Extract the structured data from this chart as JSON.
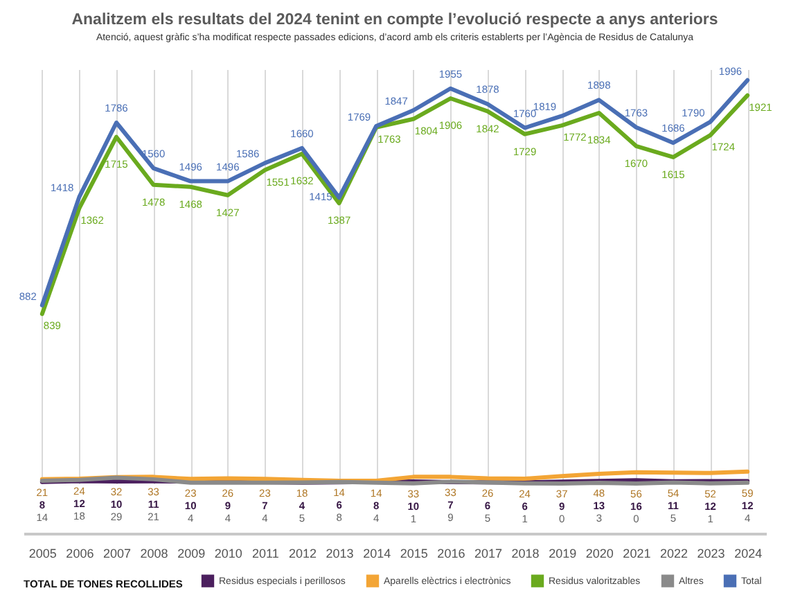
{
  "chart_data": {
    "type": "line",
    "title": "Analitzem els resultats del 2024 tenint en compte l’evolució respecte a anys anteriors",
    "subtitle": "Atenció, aquest gràfic s’ha modificat respecte passades edicions, d’acord amb els criteris establerts per l’Agència de Residus de Catalunya",
    "legend_title": "TOTAL DE TONES RECOLLIDES",
    "categories": [
      "2005",
      "2006",
      "2007",
      "2008",
      "2009",
      "2010",
      "2011",
      "2012",
      "2013",
      "2014",
      "2015",
      "2016",
      "2017",
      "2018",
      "2019",
      "2020",
      "2021",
      "2022",
      "2023",
      "2024"
    ],
    "series": [
      {
        "name": "Residus especials i perillosos",
        "color": "#4b1f5e",
        "values": [
          8,
          12,
          10,
          11,
          10,
          9,
          7,
          4,
          6,
          8,
          10,
          7,
          6,
          6,
          9,
          13,
          16,
          11,
          12,
          12
        ]
      },
      {
        "name": "Aparells elèctrics i electrònics",
        "color": "#f3a535",
        "values": [
          21,
          24,
          32,
          33,
          23,
          26,
          23,
          18,
          14,
          14,
          33,
          33,
          26,
          24,
          37,
          48,
          56,
          54,
          52,
          59
        ]
      },
      {
        "name": "Residus valoritzables",
        "color": "#6aaa1e",
        "values": [
          839,
          1362,
          1715,
          1478,
          1468,
          1427,
          1551,
          1632,
          1387,
          1763,
          1804,
          1906,
          1842,
          1729,
          1772,
          1834,
          1670,
          1615,
          1724,
          1921
        ]
      },
      {
        "name": "Altres",
        "color": "#8a8a8a",
        "values": [
          14,
          18,
          29,
          21,
          4,
          4,
          4,
          5,
          8,
          4,
          1,
          9,
          5,
          1,
          0,
          3,
          0,
          5,
          1,
          4
        ]
      },
      {
        "name": "Total",
        "color": "#4a6fb5",
        "values": [
          882,
          1418,
          1786,
          1560,
          1496,
          1496,
          1586,
          1660,
          1415,
          1769,
          1847,
          1955,
          1878,
          1760,
          1819,
          1898,
          1763,
          1686,
          1790,
          1996
        ]
      }
    ],
    "ylim": [
      0,
      2050
    ],
    "data_labels": true,
    "grid": "x",
    "legend": "bottom",
    "tick_labels": "x",
    "line_style": "solid"
  }
}
